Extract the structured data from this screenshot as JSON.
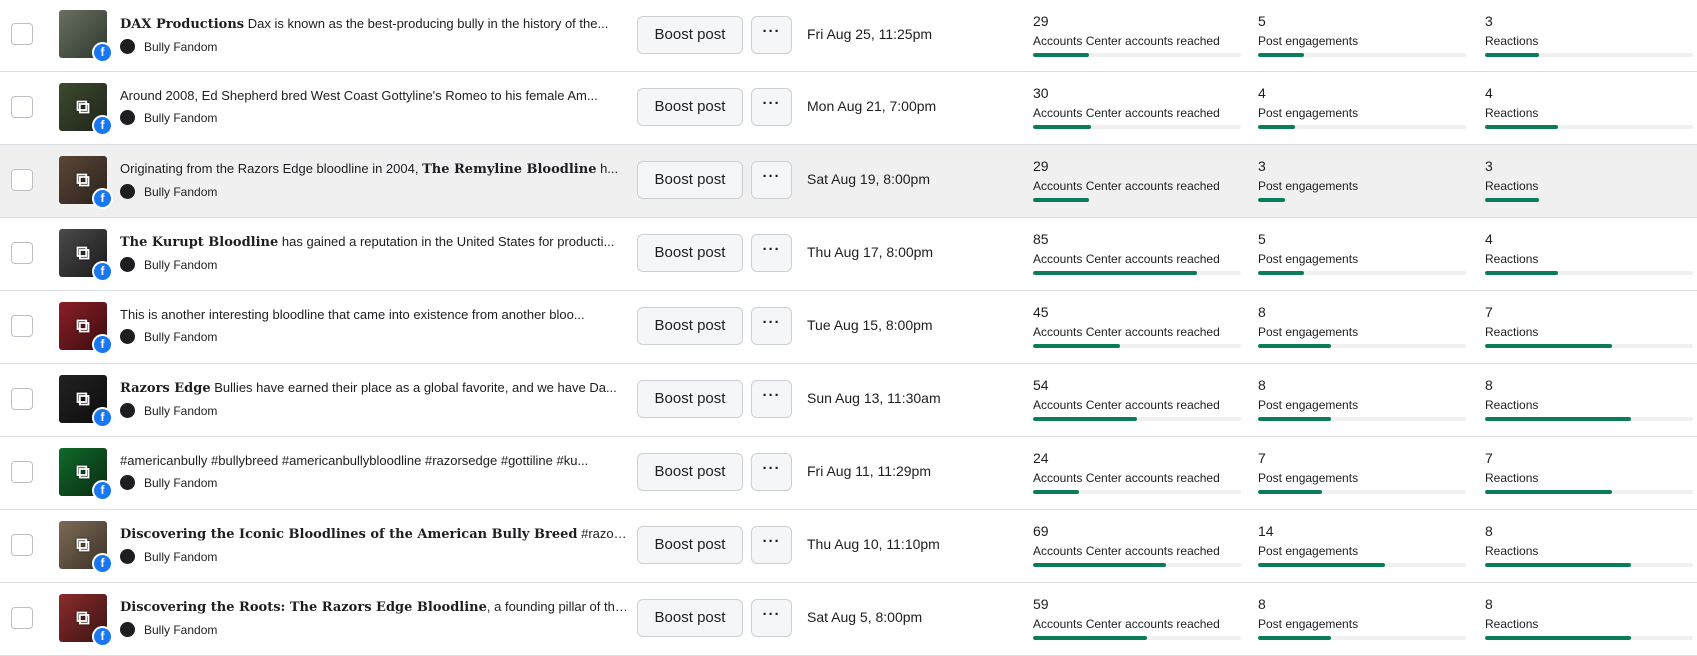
{
  "ui": {
    "boost_label": "Boost post",
    "more_label": "···",
    "page_name": "Bully Fandom",
    "platform_badge": "f",
    "link_icon": "link-icon",
    "colors": {
      "accent": "#0a7c59",
      "facebook": "#1877f2"
    }
  },
  "posts": [
    {
      "title": "DAX Productions",
      "text": " Dax is known as the best-producing bully in the history of the...",
      "date": "Fri Aug 25, 11:25pm",
      "reach": {
        "value": "29",
        "label": "Accounts Center accounts reached",
        "fill": 0.27
      },
      "engage": {
        "value": "5",
        "label": "Post engagements",
        "fill": 0.22
      },
      "react": {
        "value": "3",
        "label": "Reactions",
        "fill": 0.26
      },
      "thumb_colors": [
        "#6a6f63",
        "#2c3a2b"
      ],
      "has_link": false
    },
    {
      "title": "",
      "text": "Around 2008, Ed Shepherd bred West Coast Gottyline's Romeo to his female Am...",
      "date": "Mon Aug 21, 7:00pm",
      "reach": {
        "value": "30",
        "label": "Accounts Center accounts reached",
        "fill": 0.28
      },
      "engage": {
        "value": "4",
        "label": "Post engagements",
        "fill": 0.18
      },
      "react": {
        "value": "4",
        "label": "Reactions",
        "fill": 0.35
      },
      "thumb_colors": [
        "#3d4a2f",
        "#1f2419"
      ],
      "has_link": true
    },
    {
      "title": "The Remyline Bloodline",
      "text_before": "Originating from the Razors Edge bloodline in 2004, ",
      "text": " h...",
      "date": "Sat Aug 19, 8:00pm",
      "reach": {
        "value": "29",
        "label": "Accounts Center accounts reached",
        "fill": 0.27
      },
      "engage": {
        "value": "3",
        "label": "Post engagements",
        "fill": 0.13
      },
      "react": {
        "value": "3",
        "label": "Reactions",
        "fill": 0.26
      },
      "thumb_colors": [
        "#5b4636",
        "#2a221c"
      ],
      "has_link": true
    },
    {
      "title": "The Kurupt Bloodline",
      "text": " has gained a reputation in the United States for producti...",
      "date": "Thu Aug 17, 8:00pm",
      "reach": {
        "value": "85",
        "label": "Accounts Center accounts reached",
        "fill": 0.79
      },
      "engage": {
        "value": "5",
        "label": "Post engagements",
        "fill": 0.22
      },
      "react": {
        "value": "4",
        "label": "Reactions",
        "fill": 0.35
      },
      "thumb_colors": [
        "#4b4b4b",
        "#1a1a1a"
      ],
      "has_link": true
    },
    {
      "title": "",
      "text": "This is another interesting bloodline that came into existence from another bloo...",
      "date": "Tue Aug 15, 8:00pm",
      "reach": {
        "value": "45",
        "label": "Accounts Center accounts reached",
        "fill": 0.42
      },
      "engage": {
        "value": "8",
        "label": "Post engagements",
        "fill": 0.35
      },
      "react": {
        "value": "7",
        "label": "Reactions",
        "fill": 0.61
      },
      "thumb_colors": [
        "#8a1f26",
        "#3b0c10"
      ],
      "has_link": true
    },
    {
      "title": "Razors Edge",
      "text": " Bullies have earned their place as a global favorite, and we have Da...",
      "date": "Sun Aug 13, 11:30am",
      "reach": {
        "value": "54",
        "label": "Accounts Center accounts reached",
        "fill": 0.5
      },
      "engage": {
        "value": "8",
        "label": "Post engagements",
        "fill": 0.35
      },
      "react": {
        "value": "8",
        "label": "Reactions",
        "fill": 0.7
      },
      "thumb_colors": [
        "#222222",
        "#0d0d0d"
      ],
      "has_link": true
    },
    {
      "title": "",
      "text": "#americanbully #bullybreed #americanbullybloodline #razorsedge #gottiline #ku...",
      "date": "Fri Aug 11, 11:29pm",
      "reach": {
        "value": "24",
        "label": "Accounts Center accounts reached",
        "fill": 0.22
      },
      "engage": {
        "value": "7",
        "label": "Post engagements",
        "fill": 0.31
      },
      "react": {
        "value": "7",
        "label": "Reactions",
        "fill": 0.61
      },
      "thumb_colors": [
        "#0f6b2a",
        "#0a2a12"
      ],
      "has_link": true
    },
    {
      "title": "Discovering the Iconic Bloodlines of the American Bully Breed",
      "text": " #razorsedge...",
      "date": "Thu Aug 10, 11:10pm",
      "reach": {
        "value": "69",
        "label": "Accounts Center accounts reached",
        "fill": 0.64
      },
      "engage": {
        "value": "14",
        "label": "Post engagements",
        "fill": 0.61
      },
      "react": {
        "value": "8",
        "label": "Reactions",
        "fill": 0.7
      },
      "thumb_colors": [
        "#7d6a55",
        "#3c3227"
      ],
      "has_link": true
    },
    {
      "title": "Discovering the Roots: The Razors Edge Bloodline",
      "text": ", a founding pillar of the ...",
      "date": "Sat Aug 5, 8:00pm",
      "reach": {
        "value": "59",
        "label": "Accounts Center accounts reached",
        "fill": 0.55
      },
      "engage": {
        "value": "8",
        "label": "Post engagements",
        "fill": 0.35
      },
      "react": {
        "value": "8",
        "label": "Reactions",
        "fill": 0.7
      },
      "thumb_colors": [
        "#8c2b2b",
        "#3a1414"
      ],
      "has_link": true
    }
  ]
}
